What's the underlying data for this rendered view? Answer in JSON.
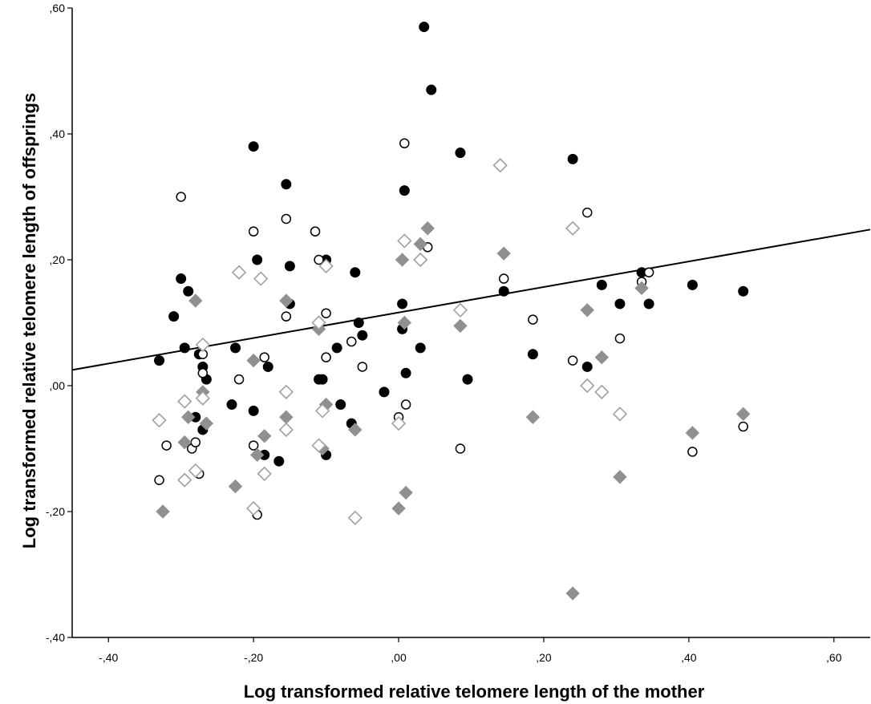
{
  "chart_data": {
    "type": "scatter",
    "xlabel": "Log transformed relative telomere length of the mother",
    "ylabel": "Log transformed relative telomere length of offsprings",
    "xlim": [
      -0.45,
      0.65
    ],
    "ylim": [
      -0.4,
      0.6
    ],
    "x_ticks": [
      {
        "value": -0.4,
        "label": "-,40"
      },
      {
        "value": -0.2,
        "label": "-,20"
      },
      {
        "value": 0.0,
        "label": ",00"
      },
      {
        "value": 0.2,
        "label": ",20"
      },
      {
        "value": 0.4,
        "label": ",40"
      },
      {
        "value": 0.6,
        "label": ",60"
      }
    ],
    "y_ticks": [
      {
        "value": -0.4,
        "label": "-,40"
      },
      {
        "value": -0.2,
        "label": "-,20"
      },
      {
        "value": 0.0,
        "label": ",00"
      },
      {
        "value": 0.2,
        "label": ",20"
      },
      {
        "value": 0.4,
        "label": ",40"
      },
      {
        "value": 0.6,
        "label": ",60"
      }
    ],
    "grid": false,
    "legend": "none",
    "fit_line": {
      "x": [
        -0.45,
        0.65
      ],
      "y": [
        0.025,
        0.248
      ],
      "color": "#000000"
    },
    "series": [
      {
        "marker": "filled-circle",
        "color": "#000000",
        "points": [
          [
            -0.33,
            0.04
          ],
          [
            -0.31,
            0.11
          ],
          [
            -0.3,
            0.17
          ],
          [
            -0.29,
            0.15
          ],
          [
            -0.295,
            0.06
          ],
          [
            -0.275,
            0.05
          ],
          [
            -0.27,
            0.03
          ],
          [
            -0.265,
            0.01
          ],
          [
            -0.27,
            -0.07
          ],
          [
            -0.28,
            -0.05
          ],
          [
            -0.23,
            -0.03
          ],
          [
            -0.225,
            0.06
          ],
          [
            -0.2,
            0.38
          ],
          [
            -0.195,
            0.2
          ],
          [
            -0.2,
            -0.04
          ],
          [
            -0.18,
            0.03
          ],
          [
            -0.185,
            -0.11
          ],
          [
            -0.165,
            -0.12
          ],
          [
            -0.155,
            0.32
          ],
          [
            -0.15,
            0.19
          ],
          [
            -0.15,
            0.13
          ],
          [
            -0.11,
            0.01
          ],
          [
            -0.105,
            0.01
          ],
          [
            -0.1,
            0.2
          ],
          [
            -0.1,
            -0.11
          ],
          [
            -0.085,
            0.06
          ],
          [
            -0.08,
            -0.03
          ],
          [
            -0.065,
            -0.06
          ],
          [
            -0.06,
            0.18
          ],
          [
            -0.055,
            0.1
          ],
          [
            -0.05,
            0.08
          ],
          [
            -0.02,
            -0.01
          ],
          [
            0.005,
            0.09
          ],
          [
            0.005,
            0.13
          ],
          [
            0.008,
            0.31
          ],
          [
            0.01,
            0.02
          ],
          [
            0.03,
            0.06
          ],
          [
            0.035,
            0.57
          ],
          [
            0.045,
            0.47
          ],
          [
            0.085,
            0.37
          ],
          [
            0.095,
            0.01
          ],
          [
            0.145,
            0.15
          ],
          [
            0.185,
            0.05
          ],
          [
            0.24,
            0.36
          ],
          [
            0.26,
            0.03
          ],
          [
            0.28,
            0.16
          ],
          [
            0.305,
            0.13
          ],
          [
            0.335,
            0.18
          ],
          [
            0.345,
            0.13
          ],
          [
            0.405,
            0.16
          ],
          [
            0.475,
            0.15
          ]
        ]
      },
      {
        "marker": "open-circle",
        "color": "#000000",
        "points": [
          [
            -0.33,
            -0.15
          ],
          [
            -0.32,
            -0.095
          ],
          [
            -0.3,
            0.3
          ],
          [
            -0.285,
            -0.1
          ],
          [
            -0.28,
            -0.09
          ],
          [
            -0.275,
            -0.14
          ],
          [
            -0.27,
            0.05
          ],
          [
            -0.27,
            0.02
          ],
          [
            -0.22,
            0.01
          ],
          [
            -0.2,
            0.245
          ],
          [
            -0.2,
            -0.095
          ],
          [
            -0.195,
            -0.205
          ],
          [
            -0.185,
            0.045
          ],
          [
            -0.155,
            0.265
          ],
          [
            -0.155,
            0.11
          ],
          [
            -0.115,
            0.245
          ],
          [
            -0.11,
            0.2
          ],
          [
            -0.1,
            0.115
          ],
          [
            -0.1,
            0.045
          ],
          [
            -0.065,
            0.07
          ],
          [
            -0.05,
            0.03
          ],
          [
            0.0,
            -0.05
          ],
          [
            0.008,
            0.385
          ],
          [
            0.01,
            -0.03
          ],
          [
            0.04,
            0.22
          ],
          [
            0.085,
            -0.1
          ],
          [
            0.145,
            0.17
          ],
          [
            0.185,
            0.105
          ],
          [
            0.24,
            0.04
          ],
          [
            0.26,
            0.275
          ],
          [
            0.305,
            0.075
          ],
          [
            0.335,
            0.165
          ],
          [
            0.345,
            0.18
          ],
          [
            0.405,
            -0.105
          ],
          [
            0.475,
            -0.065
          ]
        ]
      },
      {
        "marker": "filled-diamond",
        "color": "#909090",
        "points": [
          [
            -0.325,
            -0.2
          ],
          [
            -0.29,
            -0.05
          ],
          [
            -0.295,
            -0.09
          ],
          [
            -0.28,
            0.135
          ],
          [
            -0.27,
            -0.01
          ],
          [
            -0.265,
            -0.06
          ],
          [
            -0.225,
            -0.16
          ],
          [
            -0.2,
            0.04
          ],
          [
            -0.195,
            -0.11
          ],
          [
            -0.185,
            -0.08
          ],
          [
            -0.155,
            0.135
          ],
          [
            -0.155,
            -0.05
          ],
          [
            -0.11,
            0.09
          ],
          [
            -0.1,
            -0.03
          ],
          [
            -0.105,
            -0.1
          ],
          [
            -0.06,
            -0.07
          ],
          [
            0.0,
            -0.195
          ],
          [
            0.005,
            0.2
          ],
          [
            0.008,
            0.1
          ],
          [
            0.01,
            -0.17
          ],
          [
            0.03,
            0.225
          ],
          [
            0.04,
            0.25
          ],
          [
            0.085,
            0.095
          ],
          [
            0.145,
            0.21
          ],
          [
            0.185,
            -0.05
          ],
          [
            0.24,
            -0.33
          ],
          [
            0.26,
            0.12
          ],
          [
            0.28,
            0.045
          ],
          [
            0.305,
            -0.145
          ],
          [
            0.335,
            0.155
          ],
          [
            0.405,
            -0.075
          ],
          [
            0.475,
            -0.045
          ]
        ]
      },
      {
        "marker": "open-diamond",
        "color": "#a0a0a0",
        "points": [
          [
            -0.33,
            -0.055
          ],
          [
            -0.295,
            -0.025
          ],
          [
            -0.295,
            -0.15
          ],
          [
            -0.28,
            -0.135
          ],
          [
            -0.27,
            0.065
          ],
          [
            -0.27,
            -0.02
          ],
          [
            -0.22,
            0.18
          ],
          [
            -0.2,
            -0.195
          ],
          [
            -0.19,
            0.17
          ],
          [
            -0.185,
            -0.14
          ],
          [
            -0.155,
            -0.01
          ],
          [
            -0.155,
            -0.07
          ],
          [
            -0.11,
            0.1
          ],
          [
            -0.11,
            -0.095
          ],
          [
            -0.105,
            -0.04
          ],
          [
            -0.1,
            0.19
          ],
          [
            -0.06,
            -0.21
          ],
          [
            0.0,
            -0.06
          ],
          [
            0.008,
            0.23
          ],
          [
            0.03,
            0.2
          ],
          [
            0.085,
            0.12
          ],
          [
            0.14,
            0.35
          ],
          [
            0.24,
            0.25
          ],
          [
            0.26,
            0.0
          ],
          [
            0.28,
            -0.01
          ],
          [
            0.305,
            -0.045
          ]
        ]
      }
    ]
  }
}
